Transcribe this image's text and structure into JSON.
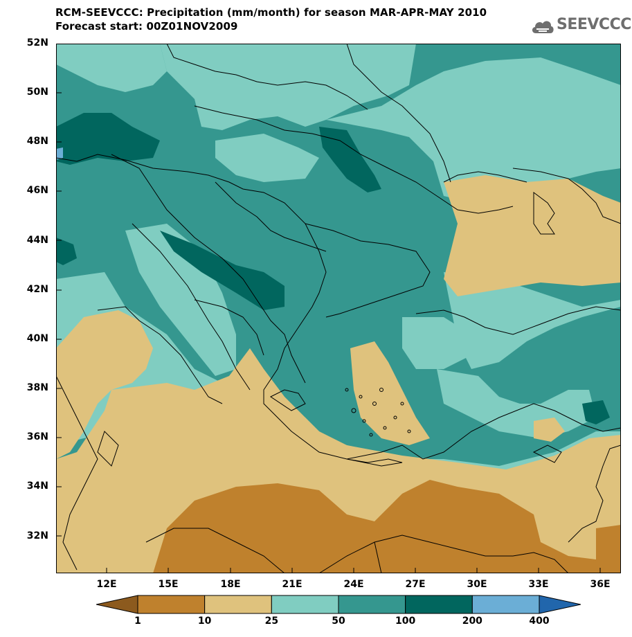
{
  "title": {
    "line1": "RCM-SEEVCCC: Precipitation (mm/month) for season MAR-APR-MAY 2010",
    "line2": "Forecast start: 00Z01NOV2009"
  },
  "logo": {
    "text": "SEEVCCC"
  },
  "axes": {
    "lat_labels": [
      "52N",
      "50N",
      "48N",
      "46N",
      "44N",
      "42N",
      "40N",
      "38N",
      "36N",
      "34N",
      "32N"
    ],
    "lon_labels": [
      "12E",
      "15E",
      "18E",
      "21E",
      "24E",
      "27E",
      "30E",
      "33E",
      "36E"
    ]
  },
  "legend": {
    "levels": [
      "1",
      "10",
      "25",
      "50",
      "100",
      "200",
      "400"
    ],
    "colors": [
      "#8c5a1e",
      "#bf812d",
      "#dfc27d",
      "#80cdc1",
      "#35978f",
      "#01665e",
      "#6baed6",
      "#2166ac"
    ]
  }
}
